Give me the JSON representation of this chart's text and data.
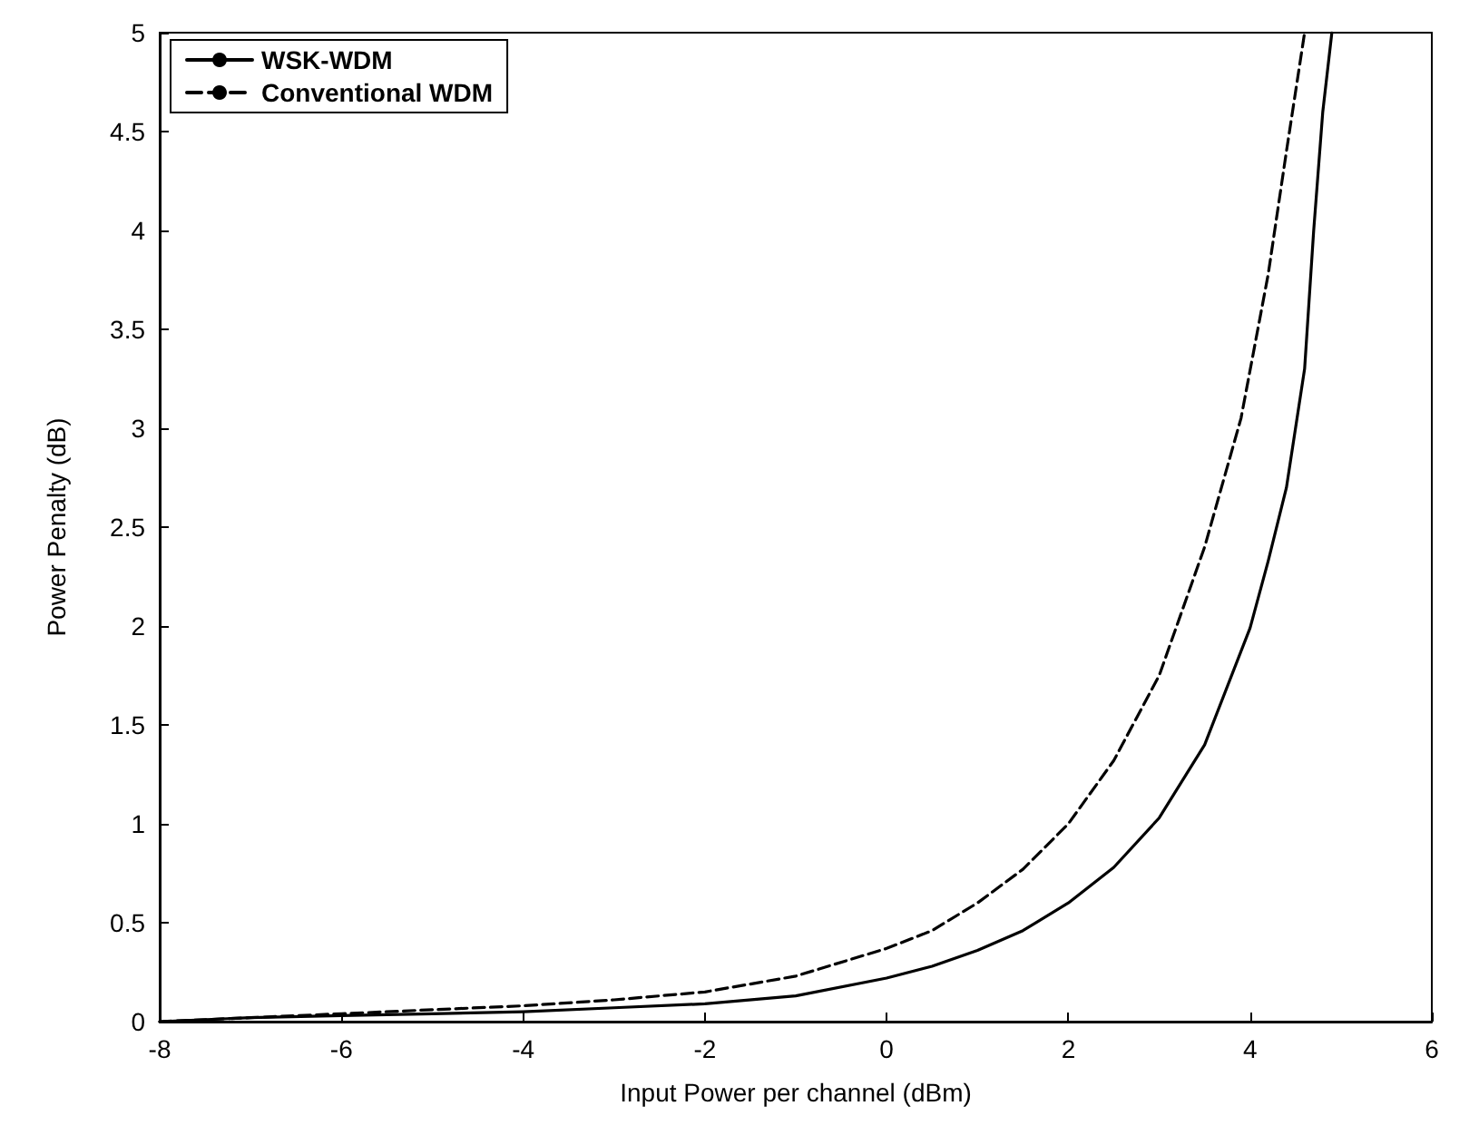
{
  "chart_data": {
    "type": "line",
    "xlabel": "Input Power per channel (dBm)",
    "ylabel": "Power Penalty (dB)",
    "xlim": [
      -8,
      6
    ],
    "xticks": [
      -8,
      -6,
      -4,
      -2,
      0,
      2,
      4,
      6
    ],
    "ylim": [
      0,
      5
    ],
    "yticks": [
      0,
      0.5,
      1,
      1.5,
      2,
      2.5,
      3,
      3.5,
      4,
      4.5,
      5
    ],
    "grid": false,
    "legend": "top left",
    "marker": "none",
    "series": [
      {
        "name": "WSK-WDM",
        "color": "#000000",
        "line_style": "solid",
        "x": [
          -8,
          -7,
          -6,
          -5,
          -4,
          -3,
          -2,
          -1,
          0,
          0.5,
          1,
          1.5,
          2,
          2.5,
          3,
          3.5,
          4,
          4.2,
          4.4,
          4.6,
          4.7,
          4.8,
          4.9
        ],
        "values": [
          0,
          0.02,
          0.03,
          0.04,
          0.05,
          0.07,
          0.09,
          0.13,
          0.22,
          0.28,
          0.36,
          0.46,
          0.6,
          0.78,
          1.03,
          1.4,
          1.99,
          2.33,
          2.7,
          3.3,
          4.0,
          4.6,
          5.0
        ]
      },
      {
        "name": "Conventional WDM",
        "color": "#000000",
        "line_style": "dashed",
        "x": [
          -8,
          -7,
          -6,
          -5,
          -4,
          -3,
          -2,
          -1,
          0,
          0.5,
          1,
          1.5,
          2,
          2.5,
          3,
          3.5,
          3.9,
          4.2,
          4.4,
          4.6
        ],
        "values": [
          0,
          0.02,
          0.04,
          0.06,
          0.08,
          0.11,
          0.15,
          0.23,
          0.37,
          0.46,
          0.6,
          0.77,
          1.0,
          1.32,
          1.75,
          2.4,
          3.05,
          3.78,
          4.4,
          5.0
        ]
      }
    ]
  }
}
